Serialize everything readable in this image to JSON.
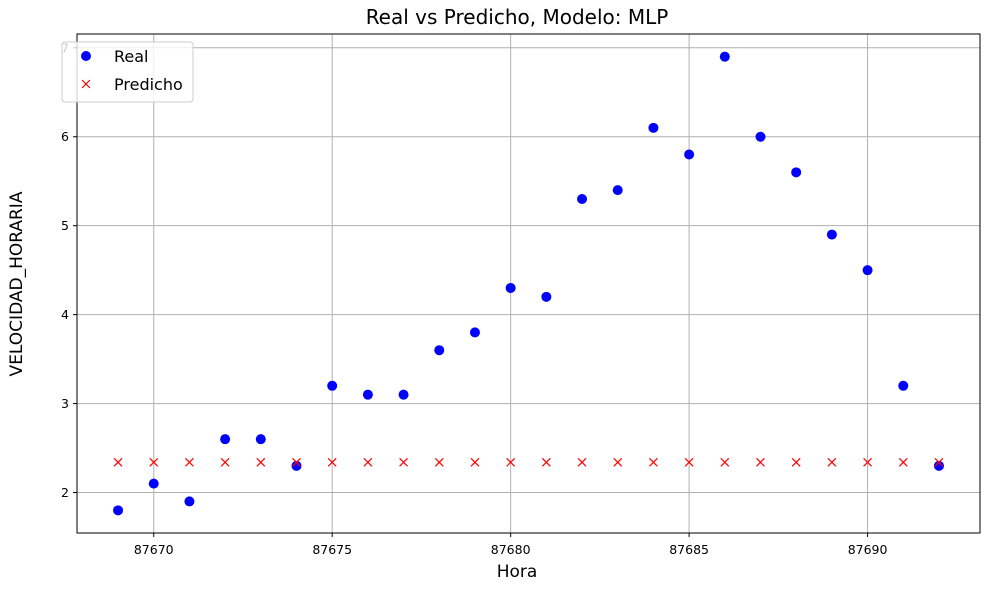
{
  "chart_data": {
    "type": "scatter",
    "title": "Real vs Predicho, Modelo: MLP",
    "xlabel": "Hora",
    "ylabel": "VELOCIDAD_HORARIA",
    "xlim": [
      87667.85,
      87693.15
    ],
    "ylim": [
      1.545,
      7.155
    ],
    "xticks": [
      87670,
      87675,
      87680,
      87685,
      87690
    ],
    "yticks": [
      2,
      3,
      4,
      5,
      6,
      7
    ],
    "grid": true,
    "legend_position": "top-left",
    "series": [
      {
        "name": "Real",
        "marker": "circle",
        "color": "#0000ff",
        "x": [
          87669,
          87670,
          87671,
          87672,
          87673,
          87674,
          87675,
          87676,
          87677,
          87678,
          87679,
          87680,
          87681,
          87682,
          87683,
          87684,
          87685,
          87686,
          87687,
          87688,
          87689,
          87690,
          87691,
          87692
        ],
        "y": [
          1.8,
          2.1,
          1.9,
          2.6,
          2.6,
          2.3,
          3.2,
          3.1,
          3.1,
          3.6,
          3.8,
          4.3,
          4.2,
          5.3,
          5.4,
          6.1,
          5.8,
          6.9,
          6.0,
          5.6,
          4.9,
          4.5,
          3.2,
          2.3
        ]
      },
      {
        "name": "Predicho",
        "marker": "x",
        "color": "#ff0000",
        "x": [
          87669,
          87670,
          87671,
          87672,
          87673,
          87674,
          87675,
          87676,
          87677,
          87678,
          87679,
          87680,
          87681,
          87682,
          87683,
          87684,
          87685,
          87686,
          87687,
          87688,
          87689,
          87690,
          87691,
          87692
        ],
        "y": [
          2.34,
          2.34,
          2.34,
          2.34,
          2.34,
          2.34,
          2.34,
          2.34,
          2.34,
          2.34,
          2.34,
          2.34,
          2.34,
          2.34,
          2.34,
          2.34,
          2.34,
          2.34,
          2.34,
          2.34,
          2.34,
          2.34,
          2.34,
          2.34
        ]
      }
    ]
  }
}
